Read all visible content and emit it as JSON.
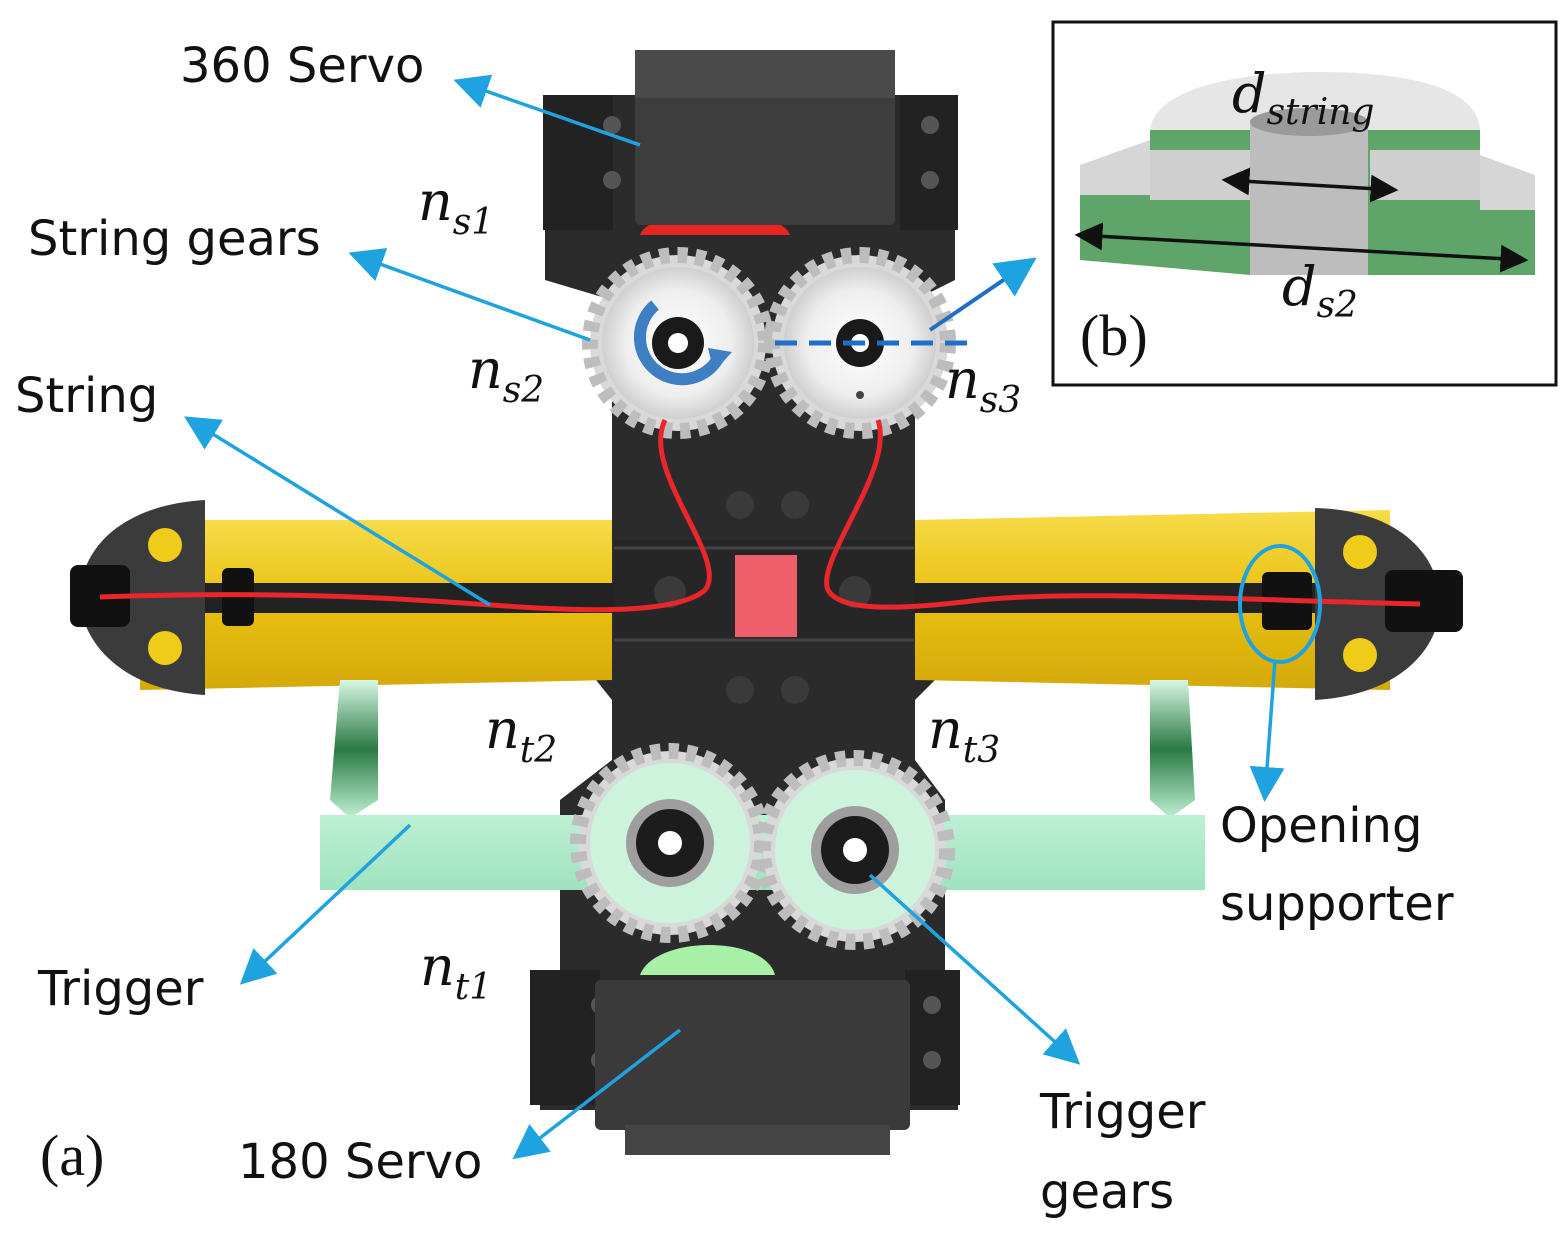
{
  "labels": {
    "servo360": "360 Servo",
    "string_gears": "String gears",
    "string": "String",
    "trigger": "Trigger",
    "servo180": "180 Servo",
    "trigger_gears_line1": "Trigger",
    "trigger_gears_line2": "gears",
    "opening_line1": "Opening",
    "opening_line2": "supporter"
  },
  "gear_symbols": {
    "ns1": {
      "base": "n",
      "sub": "s1"
    },
    "ns2": {
      "base": "n",
      "sub": "s2"
    },
    "ns3": {
      "base": "n",
      "sub": "s3"
    },
    "nt1": {
      "base": "n",
      "sub": "t1"
    },
    "nt2": {
      "base": "n",
      "sub": "t2"
    },
    "nt3": {
      "base": "n",
      "sub": "t3"
    }
  },
  "inset": {
    "d_string": {
      "base": "d",
      "sub": "string"
    },
    "d_s2": {
      "base": "d",
      "sub": "s2"
    }
  },
  "panels": {
    "a": "(a)",
    "b": "(b)"
  },
  "colors": {
    "body": "#2b2b2b",
    "servo": "#3a3a3a",
    "string": "#e8262b",
    "yellow_arm": "#f2cc1a",
    "trigger_green": "#c8f2dc",
    "gear": "#e6e6e6",
    "arrow": "#1ea3e0",
    "inset_green": "#5fa56a"
  }
}
